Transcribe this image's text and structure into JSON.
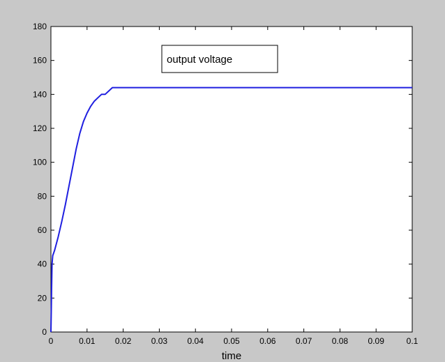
{
  "chart_data": {
    "type": "line",
    "title": "",
    "xlabel": "time",
    "ylabel": "",
    "xlim": [
      0,
      0.1
    ],
    "ylim": [
      0,
      180
    ],
    "xticks": [
      "0",
      "0.01",
      "0.02",
      "0.03",
      "0.04",
      "0.05",
      "0.06",
      "0.07",
      "0.08",
      "0.09",
      "0.1"
    ],
    "yticks": [
      "0",
      "20",
      "40",
      "60",
      "80",
      "100",
      "120",
      "140",
      "160",
      "180"
    ],
    "grid": false,
    "legend_position": "top-center",
    "annotations": [
      "output voltage"
    ],
    "series": [
      {
        "name": "output voltage",
        "color": "#1f1fe0",
        "x": [
          0,
          0.0001,
          0.0002,
          0.0003,
          0.0005,
          0.001,
          0.002,
          0.003,
          0.004,
          0.005,
          0.006,
          0.007,
          0.008,
          0.009,
          0.01,
          0.011,
          0.012,
          0.013,
          0.014,
          0.015,
          0.016,
          0.017,
          0.018,
          0.02,
          0.03,
          0.04,
          0.05,
          0.06,
          0.07,
          0.08,
          0.09,
          0.1
        ],
        "y": [
          0,
          12,
          26,
          40,
          45,
          48,
          56,
          65,
          75,
          86,
          97,
          108,
          117,
          124,
          129,
          133,
          136,
          138,
          140,
          140,
          142,
          144,
          144,
          144,
          144,
          144,
          144,
          144,
          144,
          144,
          144,
          144
        ]
      }
    ]
  }
}
